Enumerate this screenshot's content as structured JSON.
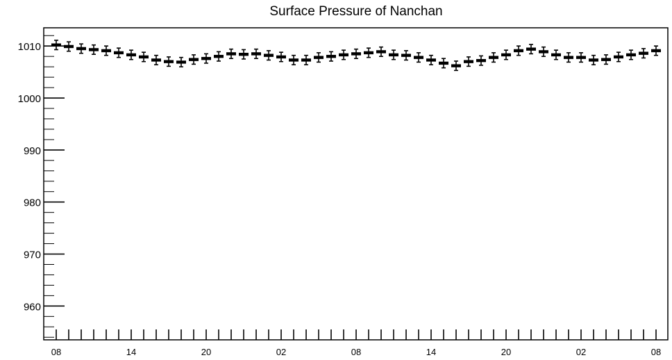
{
  "chart_data": {
    "type": "scatter",
    "title": "Surface Pressure of Nanchan",
    "xlabel": "",
    "ylabel": "",
    "ylim": [
      953.5,
      1013.5
    ],
    "y_ticks": [
      960,
      970,
      980,
      990,
      1000,
      1010
    ],
    "x_tick_labels": [
      "08",
      "14",
      "20",
      "02",
      "08",
      "14",
      "20",
      "02",
      "08"
    ],
    "x_tick_indices": [
      0,
      6,
      12,
      18,
      24,
      30,
      36,
      42,
      48
    ],
    "error": 0.9,
    "marker": "horizontal-bar",
    "color": "#000000",
    "series": [
      {
        "values": [
          1010.2,
          1009.9,
          1009.5,
          1009.3,
          1009.1,
          1008.7,
          1008.3,
          1007.9,
          1007.3,
          1007.0,
          1006.9,
          1007.4,
          1007.6,
          1008.0,
          1008.5,
          1008.4,
          1008.5,
          1008.2,
          1007.9,
          1007.3,
          1007.3,
          1007.8,
          1008.0,
          1008.3,
          1008.5,
          1008.7,
          1008.9,
          1008.3,
          1008.2,
          1007.8,
          1007.3,
          1006.7,
          1006.2,
          1007.0,
          1007.2,
          1007.8,
          1008.3,
          1009.1,
          1009.4,
          1008.9,
          1008.3,
          1007.8,
          1007.8,
          1007.3,
          1007.4,
          1007.9,
          1008.3,
          1008.6,
          1009.1
        ]
      }
    ]
  }
}
